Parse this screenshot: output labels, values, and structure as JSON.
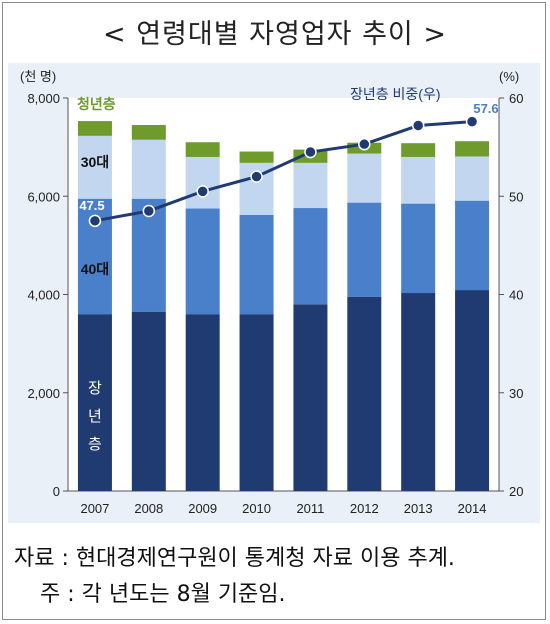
{
  "title": "< 연령대별 자영업자 추이 >",
  "notes": {
    "source": "자료 : 현대경제연구원이 통계청 자료 이용 추계.",
    "footnote": "주 : 각 년도는 8월 기준임."
  },
  "chart_data": {
    "type": "bar",
    "stacked": true,
    "categories": [
      "2007",
      "2008",
      "2009",
      "2010",
      "2011",
      "2012",
      "2013",
      "2014"
    ],
    "y_left": {
      "unit_label": "(천 명)",
      "ylim": [
        0,
        8000
      ],
      "ticks": [
        "0",
        "2,000",
        "4,000",
        "6,000",
        "8,000"
      ]
    },
    "y_right": {
      "unit_label": "(%)",
      "ylim": [
        20,
        60
      ],
      "ticks": [
        "20",
        "30",
        "40",
        "50",
        "60"
      ]
    },
    "series": [
      {
        "name": "장년층",
        "label_lines": [
          "장",
          "년",
          "층"
        ],
        "color": "#1f3b72",
        "values": [
          3600,
          3650,
          3600,
          3600,
          3800,
          3950,
          4030,
          4090
        ]
      },
      {
        "name": "40대",
        "color": "#4a7fc9",
        "values": [
          2350,
          2300,
          2150,
          2020,
          1960,
          1920,
          1820,
          1820
        ]
      },
      {
        "name": "30대",
        "color": "#c2d6ef",
        "values": [
          1280,
          1200,
          1050,
          1060,
          920,
          1000,
          950,
          900
        ]
      },
      {
        "name": "청년층",
        "color": "#6f9a2c",
        "values": [
          300,
          300,
          300,
          230,
          270,
          220,
          280,
          310
        ]
      }
    ],
    "line": {
      "name": "장년층 비중(우)",
      "axis": "right",
      "color": "#1f3b72",
      "values": [
        47.5,
        48.5,
        50.5,
        52.0,
        54.5,
        55.3,
        57.2,
        57.6
      ],
      "point_labels": {
        "0": "47.5",
        "7": "57.6"
      }
    }
  }
}
